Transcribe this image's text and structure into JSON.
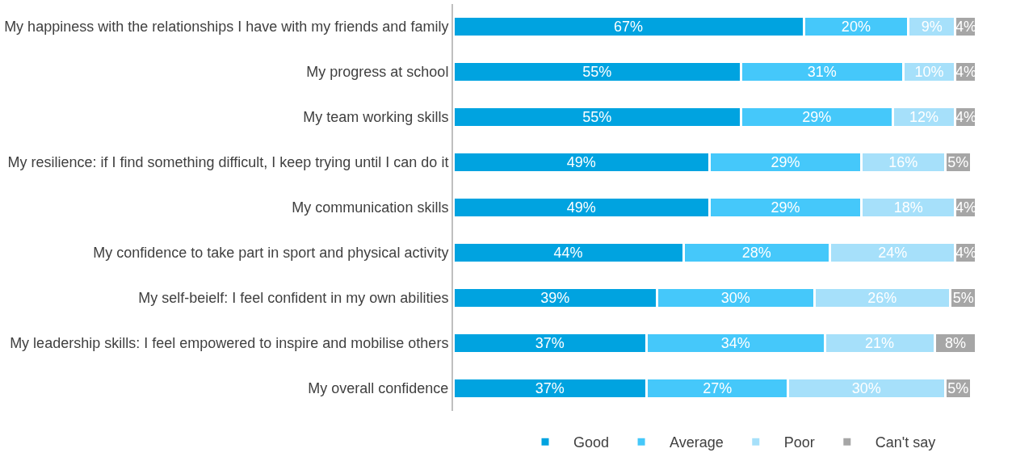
{
  "chart_data": {
    "type": "bar",
    "orientation": "horizontal",
    "stacked": true,
    "legend": "bottom",
    "tick_labels": "y",
    "grid": false,
    "categories": [
      "My happiness with the relationships I have with my friends and family",
      "My progress at school",
      "My team working skills",
      "My resilience: if I find something difficult, I keep trying until I can do it",
      "My communication skills",
      "My confidence to take part in sport and physical activity",
      "My self-beielf: I feel confident in my own abilities",
      "My leadership skills: I feel empowered to inspire and mobilise others",
      "My overall confidence"
    ],
    "series": [
      {
        "name": "Good",
        "color": "#00a3e0",
        "values": [
          67,
          55,
          55,
          49,
          49,
          44,
          39,
          37,
          37
        ],
        "value_labels": [
          "67%",
          "55%",
          "55%",
          "49%",
          "49%",
          "44%",
          "39%",
          "37%",
          "37%"
        ]
      },
      {
        "name": "Average",
        "color": "#45c8fa",
        "values": [
          20,
          31,
          29,
          29,
          29,
          28,
          30,
          34,
          27
        ],
        "value_labels": [
          "20%",
          "31%",
          "29%",
          "29%",
          "29%",
          "28%",
          "30%",
          "34%",
          "27%"
        ]
      },
      {
        "name": "Poor",
        "color": "#a6e0fa",
        "values": [
          9,
          10,
          12,
          16,
          18,
          24,
          26,
          21,
          30
        ],
        "value_labels": [
          "9%",
          "10%",
          "12%",
          "16%",
          "18%",
          "24%",
          "26%",
          "21%",
          "30%"
        ]
      },
      {
        "name": "Can't say",
        "color": "#a6a6a6",
        "values": [
          4,
          4,
          4,
          5,
          4,
          4,
          5,
          8,
          5
        ],
        "value_labels": [
          "4%",
          "4%",
          "4%",
          "5%",
          "4%",
          "4%",
          "5%",
          "8%",
          "5%"
        ]
      }
    ]
  }
}
